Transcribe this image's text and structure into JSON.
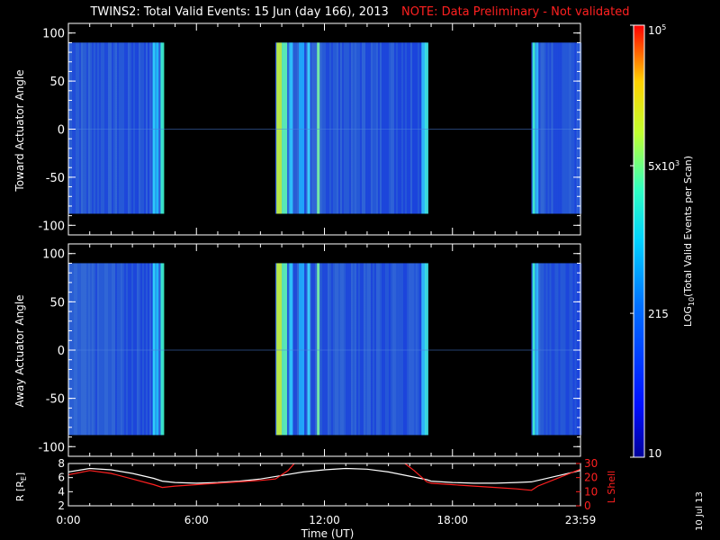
{
  "title": {
    "main": "TWINS2: Total Valid Events: 15 Jun (day 166), 2013",
    "note": "NOTE: Data Preliminary - Not validated"
  },
  "date_stamp": "10 Jul 13",
  "chart_data": [
    {
      "type": "heatmap",
      "panel": "toward",
      "ylabel": "Toward Actuator Angle",
      "ylim": [
        -110,
        110
      ],
      "yticks": [
        "100",
        "50",
        "0",
        "-50",
        "-100"
      ],
      "data_ylim": [
        -88,
        90
      ],
      "xlim_hours": [
        0,
        24
      ],
      "data_intervals_hours": [
        [
          0,
          4.4
        ],
        [
          9.7,
          16.8
        ],
        [
          21.7,
          24
        ]
      ]
    },
    {
      "type": "heatmap",
      "panel": "away",
      "ylabel": "Away Actuator Angle",
      "ylim": [
        -110,
        110
      ],
      "yticks": [
        "100",
        "50",
        "0",
        "-50",
        "-100"
      ],
      "data_ylim": [
        -88,
        90
      ],
      "xlim_hours": [
        0,
        24
      ],
      "data_intervals_hours": [
        [
          0,
          4.4
        ],
        [
          9.7,
          16.8
        ],
        [
          21.7,
          24
        ]
      ]
    },
    {
      "type": "line",
      "panel": "orbit",
      "ylabel_left": "R [R",
      "ylabel_left_sub": "E",
      "ylabel_left_end": "]",
      "ylabel_right": "L Shell",
      "left_ylim": [
        2,
        8
      ],
      "left_yticks": [
        "8",
        "6",
        "4",
        "2"
      ],
      "right_ylim": [
        0,
        30
      ],
      "right_yticks": [
        "30",
        "20",
        "10",
        "0"
      ],
      "xlabel": "Time (UT)",
      "xticks": [
        "0:00",
        "6:00",
        "12:00",
        "18:00",
        "23:59"
      ],
      "xtick_hours": [
        0,
        6,
        12,
        18,
        24
      ],
      "series": [
        {
          "axis": "left",
          "color": "#ffffff",
          "x": [
            0,
            1,
            2,
            3,
            4,
            4.4,
            5,
            6,
            7,
            8,
            9,
            10,
            11,
            12,
            13,
            14,
            15,
            16,
            16.8,
            17,
            18,
            19,
            20,
            21,
            21.7,
            22,
            23,
            24
          ],
          "y": [
            6.8,
            7.3,
            7.1,
            6.6,
            5.9,
            5.5,
            5.3,
            5.2,
            5.3,
            5.5,
            5.8,
            6.3,
            6.8,
            7.1,
            7.3,
            7.2,
            6.8,
            6.2,
            5.7,
            5.5,
            5.3,
            5.2,
            5.2,
            5.3,
            5.4,
            5.6,
            6.3,
            7.0
          ]
        },
        {
          "axis": "right",
          "color": "#ff2020",
          "segments": [
            {
              "x": [
                0,
                1,
                2,
                3,
                4,
                4.4,
                5,
                6,
                7,
                8,
                9,
                9.7,
                10.3,
                10.7
              ],
              "y": [
                22,
                25,
                23,
                19,
                15,
                13,
                14,
                15,
                16,
                17,
                18,
                19,
                25,
                32
              ]
            },
            {
              "x": [
                15.6,
                16.2,
                16.8,
                17,
                18,
                19,
                20,
                21,
                21.7,
                22,
                23,
                24
              ],
              "y": [
                32,
                25,
                17,
                16,
                15,
                14,
                13,
                12,
                11,
                14,
                20,
                26
              ]
            }
          ]
        }
      ]
    }
  ],
  "colorbar": {
    "label": "LOG",
    "label_sub": "10",
    "label_rest": "(Total Valid Events per Scan)",
    "ticks": [
      {
        "text": "10",
        "sup": "5",
        "value": 100000
      },
      {
        "text": "5x10",
        "sup": "3",
        "value": 5000
      },
      {
        "text": "215",
        "sup": "",
        "value": 215
      },
      {
        "text": "10",
        "sup": "",
        "value": 10
      }
    ],
    "range": [
      10,
      100000
    ]
  }
}
